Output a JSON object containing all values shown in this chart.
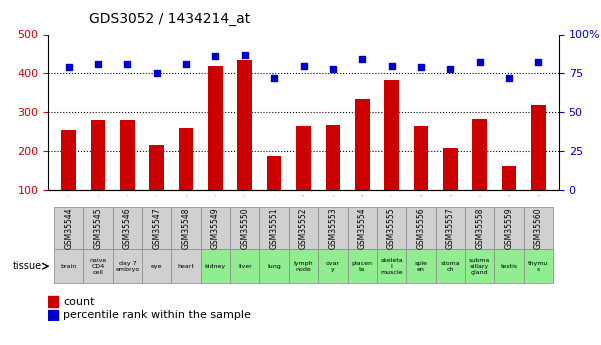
{
  "title": "GDS3052 / 1434214_at",
  "gsm_labels": [
    "GSM35544",
    "GSM35545",
    "GSM35546",
    "GSM35547",
    "GSM35548",
    "GSM35549",
    "GSM35550",
    "GSM35551",
    "GSM35552",
    "GSM35553",
    "GSM35554",
    "GSM35555",
    "GSM35556",
    "GSM35557",
    "GSM35558",
    "GSM35559",
    "GSM35560"
  ],
  "tissue_labels": [
    "brain",
    "naive\nCD4\ncell",
    "day 7\nembryо",
    "eye",
    "heart",
    "kidney",
    "liver",
    "lung",
    "lymph\nnode",
    "ovar\ny",
    "placen\nta",
    "skeleta\nl\nmuscle",
    "sple\nen",
    "stoma\nch",
    "subma\nxillary\ngland",
    "testis",
    "thymu\ns"
  ],
  "tissue_colors": [
    "#d0d0d0",
    "#d0d0d0",
    "#d0d0d0",
    "#d0d0d0",
    "#d0d0d0",
    "#90ee90",
    "#90ee90",
    "#90ee90",
    "#90ee90",
    "#90ee90",
    "#90ee90",
    "#90ee90",
    "#90ee90",
    "#90ee90",
    "#90ee90",
    "#90ee90",
    "#90ee90"
  ],
  "count_values": [
    255,
    280,
    280,
    215,
    258,
    420,
    435,
    188,
    265,
    268,
    333,
    383,
    265,
    208,
    282,
    160,
    318
  ],
  "percentile_values": [
    79,
    81,
    81,
    75,
    81,
    86,
    87,
    72,
    80,
    78,
    84,
    80,
    79,
    78,
    82,
    72,
    82
  ],
  "bar_color": "#cc0000",
  "dot_color": "#0000cc",
  "ylim_left": [
    100,
    500
  ],
  "ylim_right": [
    0,
    100
  ],
  "yticks_left": [
    100,
    200,
    300,
    400,
    500
  ],
  "yticks_right": [
    0,
    25,
    50,
    75,
    100
  ],
  "background_color": "#ffffff",
  "plot_bg_color": "#ffffff",
  "grid_color": "#000000",
  "legend_count_label": "count",
  "legend_pct_label": "percentile rank within the sample"
}
